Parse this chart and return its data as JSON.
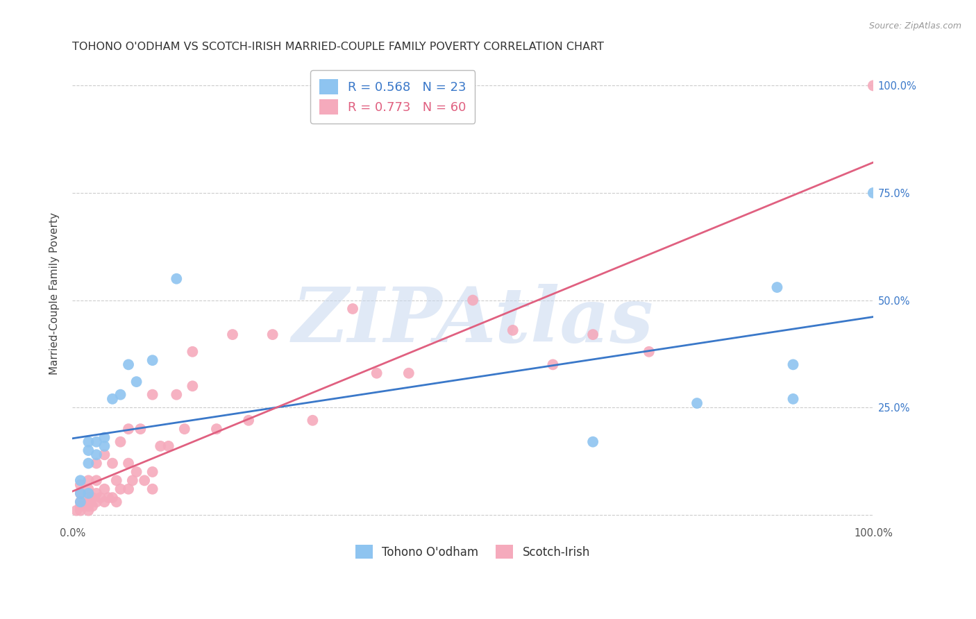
{
  "title": "TOHONO O'ODHAM VS SCOTCH-IRISH MARRIED-COUPLE FAMILY POVERTY CORRELATION CHART",
  "source": "Source: ZipAtlas.com",
  "ylabel": "Married-Couple Family Poverty",
  "xlim": [
    0,
    1
  ],
  "ylim": [
    -0.02,
    1.05
  ],
  "series1_name": "Tohono O'odham",
  "series1_color": "#8EC4F0",
  "series1_line_color": "#3A78C9",
  "series1_R": 0.568,
  "series1_N": 23,
  "series1_x": [
    0.01,
    0.01,
    0.01,
    0.02,
    0.02,
    0.02,
    0.02,
    0.03,
    0.03,
    0.04,
    0.04,
    0.05,
    0.06,
    0.07,
    0.08,
    0.1,
    0.13,
    0.65,
    0.78,
    0.88,
    0.9,
    0.9,
    1.0
  ],
  "series1_y": [
    0.03,
    0.05,
    0.08,
    0.05,
    0.12,
    0.15,
    0.17,
    0.14,
    0.17,
    0.16,
    0.18,
    0.27,
    0.28,
    0.35,
    0.31,
    0.36,
    0.55,
    0.17,
    0.26,
    0.53,
    0.27,
    0.35,
    0.75
  ],
  "series2_name": "Scotch-Irish",
  "series2_color": "#F5AABC",
  "series2_line_color": "#E06080",
  "series2_R": 0.773,
  "series2_N": 60,
  "series2_x": [
    0.005,
    0.01,
    0.01,
    0.01,
    0.01,
    0.01,
    0.015,
    0.02,
    0.02,
    0.02,
    0.02,
    0.02,
    0.02,
    0.025,
    0.025,
    0.03,
    0.03,
    0.03,
    0.03,
    0.035,
    0.04,
    0.04,
    0.04,
    0.045,
    0.05,
    0.05,
    0.055,
    0.055,
    0.06,
    0.06,
    0.07,
    0.07,
    0.07,
    0.075,
    0.08,
    0.085,
    0.09,
    0.1,
    0.1,
    0.1,
    0.11,
    0.12,
    0.13,
    0.14,
    0.15,
    0.15,
    0.18,
    0.2,
    0.22,
    0.25,
    0.3,
    0.35,
    0.38,
    0.42,
    0.5,
    0.55,
    0.6,
    0.65,
    0.72,
    1.0
  ],
  "series2_y": [
    0.01,
    0.01,
    0.02,
    0.03,
    0.05,
    0.07,
    0.02,
    0.01,
    0.02,
    0.03,
    0.04,
    0.06,
    0.08,
    0.02,
    0.04,
    0.03,
    0.05,
    0.08,
    0.12,
    0.04,
    0.03,
    0.06,
    0.14,
    0.04,
    0.04,
    0.12,
    0.03,
    0.08,
    0.06,
    0.17,
    0.06,
    0.12,
    0.2,
    0.08,
    0.1,
    0.2,
    0.08,
    0.06,
    0.1,
    0.28,
    0.16,
    0.16,
    0.28,
    0.2,
    0.3,
    0.38,
    0.2,
    0.42,
    0.22,
    0.42,
    0.22,
    0.48,
    0.33,
    0.33,
    0.5,
    0.43,
    0.35,
    0.42,
    0.38,
    1.0
  ],
  "watermark": "ZIPAtlas",
  "watermark_color": "#C8D8EF",
  "background_color": "#FFFFFF",
  "grid_color": "#CCCCCC",
  "title_fontsize": 11.5,
  "legend_fontsize": 12,
  "axis_label_fontsize": 11,
  "tick_fontsize": 10.5,
  "yticks": [
    0.0,
    0.25,
    0.5,
    0.75,
    1.0
  ],
  "ytick_labels_right": [
    "",
    "25.0%",
    "50.0%",
    "75.0%",
    "100.0%"
  ]
}
